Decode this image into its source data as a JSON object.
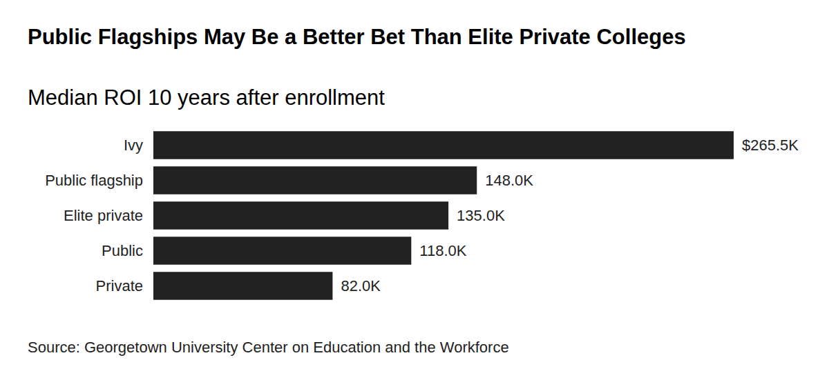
{
  "chart_data": {
    "type": "bar",
    "title": "Public Flagships May Be a Better Bet Than Elite Private Colleges",
    "subtitle": "Median ROI 10 years after enrollment",
    "source": "Source: Georgetown University Center on Education and the Workforce",
    "categories": [
      "Ivy",
      "Public flagship",
      "Elite private",
      "Public",
      "Private"
    ],
    "values": [
      265.5,
      148,
      135,
      118,
      82
    ],
    "value_labels": [
      "$265.5K",
      "148.0K",
      "135.0K",
      "118.0K",
      "82.0K"
    ],
    "color": "#222222",
    "orientation": "horizontal",
    "data_labels": true,
    "tick_labels": "y",
    "grid": false
  }
}
